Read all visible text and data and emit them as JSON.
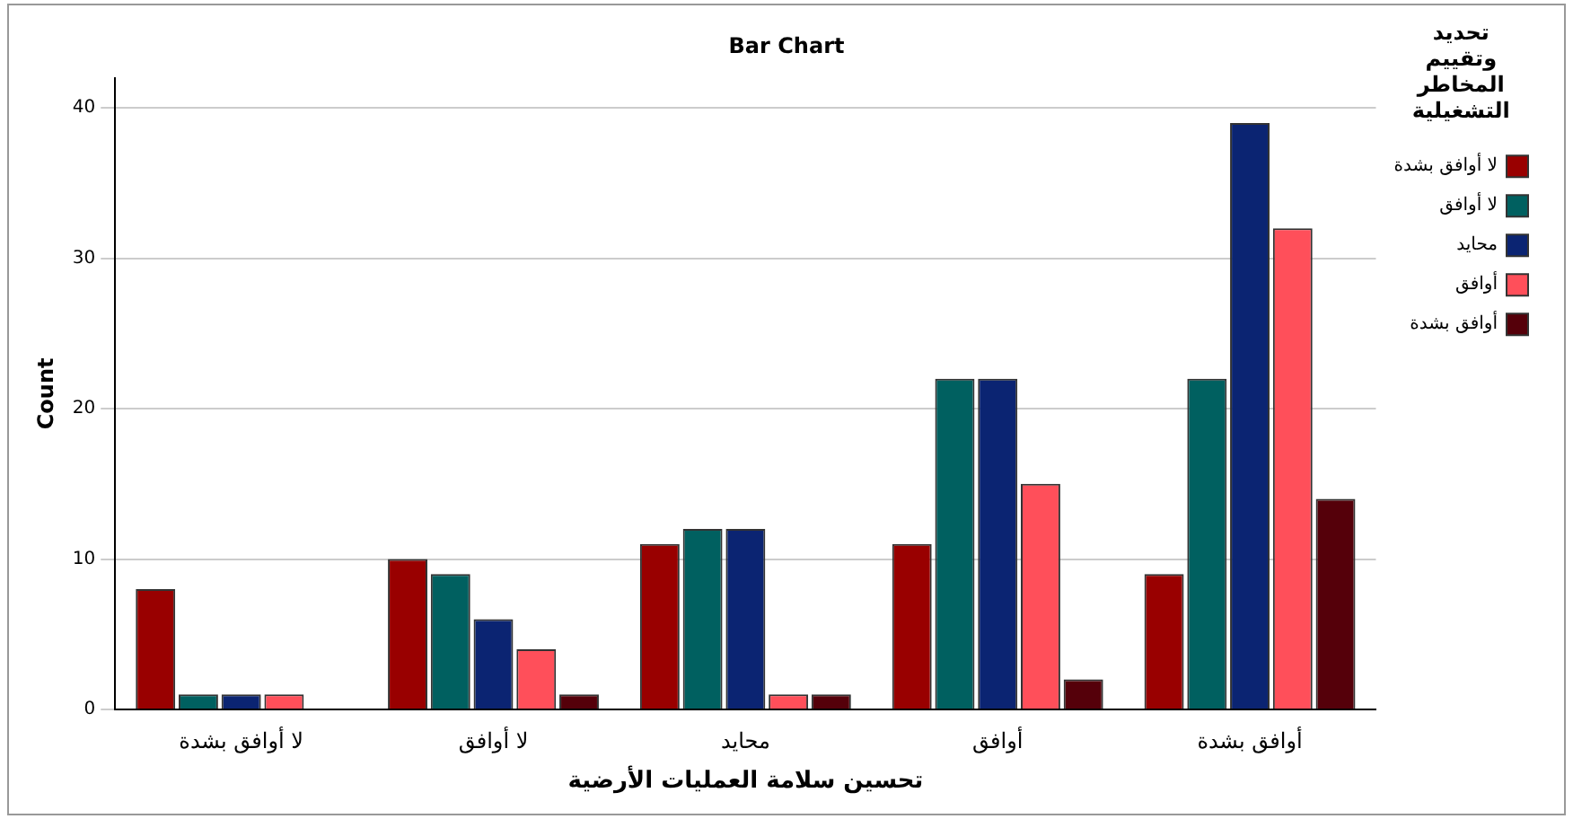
{
  "chart_data": {
    "type": "bar",
    "title": "Bar Chart",
    "xlabel": "تحسين سلامة العمليات الأرضية",
    "ylabel": "Count",
    "legend_title": "تحديد وتقييم المخاطر التشغيلية",
    "categories": [
      "لا أوافق بشدة",
      "لا أوافق",
      "محايد",
      "أوافق",
      "أوافق بشدة"
    ],
    "series": [
      {
        "name": "لا أوافق بشدة",
        "color": "#990000",
        "values": [
          8,
          10,
          11,
          11,
          9
        ]
      },
      {
        "name": "لا أوافق",
        "color": "#006060",
        "values": [
          1,
          9,
          12,
          22,
          22
        ]
      },
      {
        "name": "محايد",
        "color": "#0b2472",
        "values": [
          1,
          6,
          12,
          22,
          39
        ]
      },
      {
        "name": "أوافق",
        "color": "#ff4f5a",
        "values": [
          1,
          4,
          1,
          15,
          32
        ]
      },
      {
        "name": "أوافق بشدة",
        "color": "#55000a",
        "values": [
          0,
          1,
          1,
          2,
          14
        ]
      }
    ],
    "ylim": [
      0,
      42
    ],
    "yticks": [
      0,
      10,
      20,
      30,
      40
    ],
    "grid": "y",
    "legend": "top right"
  }
}
